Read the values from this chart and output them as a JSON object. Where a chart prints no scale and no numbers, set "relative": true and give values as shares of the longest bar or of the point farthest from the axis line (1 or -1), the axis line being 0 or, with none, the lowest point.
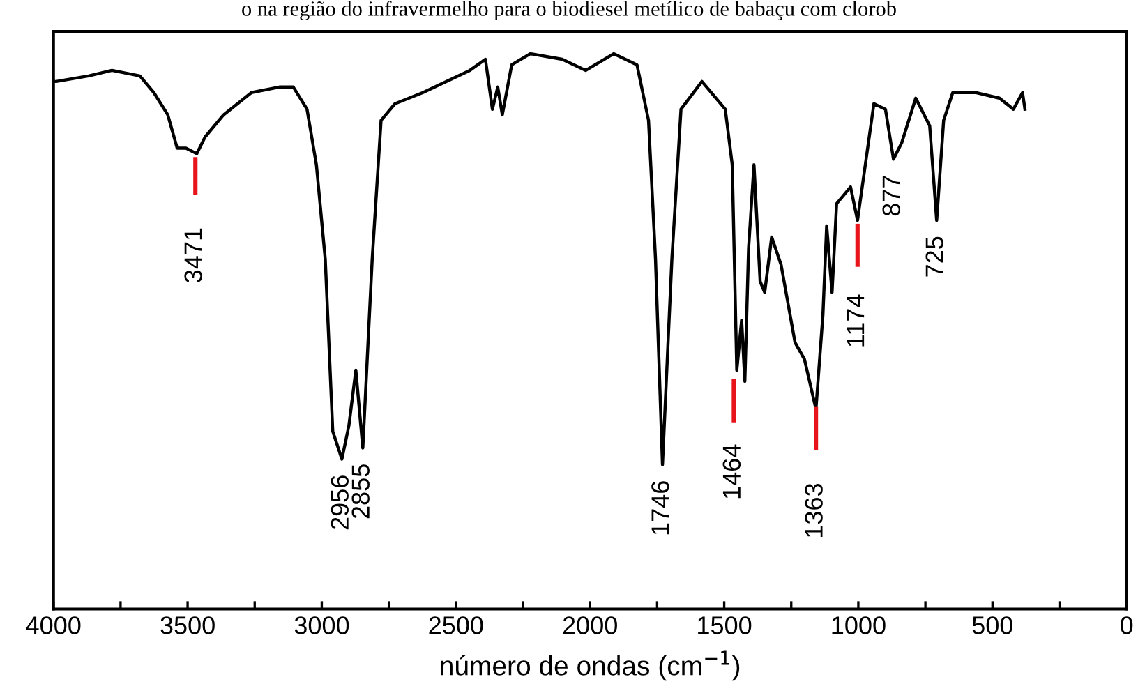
{
  "chart_data": {
    "type": "line",
    "title": "o na região do infravermelho para o biodiesel metílico de babaçu com clorob",
    "xlabel": "número de ondas (cm$^{−1}$)",
    "relative": true,
    "tick_labels": "x",
    "grid": false,
    "legend": false,
    "xlim": [
      4000,
      0
    ],
    "xticks": [
      4000,
      {
        "value": 3750,
        "label": null
      },
      3500,
      {
        "value": 3250,
        "label": null
      },
      3000,
      {
        "value": 2750,
        "label": null
      },
      2500,
      {
        "value": 2250,
        "label": null
      },
      2000,
      {
        "value": 1750,
        "label": null
      },
      1500,
      {
        "value": 1250,
        "label": null
      },
      1000,
      {
        "value": 750,
        "label": null
      },
      500,
      {
        "value": 250,
        "label": null
      },
      0
    ],
    "series": [
      {
        "color": "#000000",
        "x": [
          4000,
          3990,
          3869,
          3782,
          3678,
          3626,
          3574,
          3539,
          3506,
          3466,
          3435,
          3366,
          3262,
          3158,
          3106,
          3055,
          3020,
          2987,
          2959,
          2925,
          2899,
          2873,
          2847,
          2812,
          2779,
          2727,
          2675,
          2623,
          2448,
          2390,
          2364,
          2344,
          2327,
          2292,
          2223,
          2104,
          2016,
          1912,
          1825,
          1782,
          1756,
          1730,
          1695,
          1661,
          1583,
          1496,
          1470,
          1453,
          1435,
          1423,
          1409,
          1389,
          1366,
          1349,
          1323,
          1288,
          1236,
          1201,
          1158,
          1132,
          1118,
          1098,
          1081,
          1029,
          1003,
          942,
          899,
          869,
          838,
          786,
          734,
          708,
          682,
          648,
          561,
          474,
          422,
          388,
          379
        ],
        "values": [
          0.95,
          0.95,
          0.96,
          0.97,
          0.96,
          0.93,
          0.89,
          0.83,
          0.83,
          0.82,
          0.85,
          0.89,
          0.93,
          0.94,
          0.94,
          0.9,
          0.8,
          0.63,
          0.32,
          0.27,
          0.33,
          0.43,
          0.29,
          0.63,
          0.88,
          0.91,
          0.92,
          0.93,
          0.97,
          0.99,
          0.9,
          0.94,
          0.89,
          0.98,
          1.0,
          0.99,
          0.97,
          1.0,
          0.98,
          0.88,
          0.63,
          0.26,
          0.63,
          0.9,
          0.95,
          0.9,
          0.8,
          0.43,
          0.52,
          0.41,
          0.65,
          0.8,
          0.59,
          0.57,
          0.67,
          0.62,
          0.48,
          0.45,
          0.36,
          0.53,
          0.69,
          0.57,
          0.73,
          0.76,
          0.7,
          0.91,
          0.9,
          0.81,
          0.84,
          0.92,
          0.87,
          0.7,
          0.88,
          0.93,
          0.93,
          0.92,
          0.9,
          0.93,
          0.9
        ]
      },
      {
        "color": "#e8141b",
        "line_style": "solid",
        "x": [
          3471,
          3471
        ],
        "values": [
          0.81,
          0.75
        ]
      },
      {
        "color": "#e8141b",
        "line_style": "solid",
        "x": [
          1464,
          1464
        ],
        "values": [
          0.41,
          0.34
        ]
      },
      {
        "color": "#e8141b",
        "line_style": "solid",
        "x": [
          1158,
          1158
        ],
        "values": [
          0.36,
          0.29
        ]
      },
      {
        "color": "#e8141b",
        "line_style": "solid",
        "x": [
          1003,
          1003
        ],
        "values": [
          0.69,
          0.62
        ]
      }
    ],
    "annotations": [
      {
        "text": "3471",
        "x": 3471,
        "y": 0.82
      },
      {
        "text": "2956",
        "x": 2925,
        "y": 0.27
      },
      {
        "text": "2855",
        "x": 2847,
        "y": 0.29
      },
      {
        "text": "1746",
        "x": 1730,
        "y": 0.26
      },
      {
        "text": "1464",
        "x": 1464,
        "y": 0.43
      },
      {
        "text": "1363",
        "x": 1158,
        "y": 0.36
      },
      {
        "text": "1174",
        "x": 1003,
        "y": 0.7
      },
      {
        "text": "877",
        "x": 869,
        "y": 0.81
      },
      {
        "text": "725",
        "x": 708,
        "y": 0.7
      }
    ]
  }
}
